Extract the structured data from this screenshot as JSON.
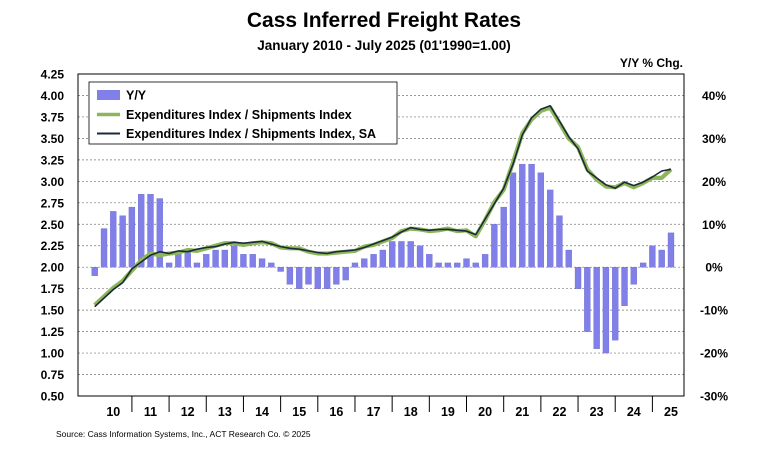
{
  "chart_data": {
    "type": "line",
    "title": "Cass Inferred Freight Rates",
    "subtitle": "January 2010 - July 2025 (01'1990=1.00)",
    "y2_label": "Y/Y % Chg.",
    "source": "Source: Cass Information Systems, Inc., ACT Research Co. © 2025",
    "ylim": [
      0.5,
      4.25
    ],
    "y_ticks": [
      "0.50",
      "0.75",
      "1.00",
      "1.25",
      "1.50",
      "1.75",
      "2.00",
      "2.25",
      "2.50",
      "2.75",
      "3.00",
      "3.25",
      "3.50",
      "3.75",
      "4.00",
      "4.25"
    ],
    "y2lim": [
      -30,
      45
    ],
    "y2_ticks": [
      "-30%",
      "-20%",
      "-10%",
      "0%",
      "10%",
      "20%",
      "30%",
      "40%"
    ],
    "x_ticks": [
      "10",
      "11",
      "12",
      "13",
      "14",
      "15",
      "16",
      "17",
      "18",
      "19",
      "20",
      "21",
      "22",
      "23",
      "24",
      "25"
    ],
    "grid": true,
    "legend_position": "top-left",
    "series": [
      {
        "name": "Y/Y",
        "kind": "bar",
        "axis": "right",
        "color": "#8080e8",
        "points": [
          [
            2010.0,
            -2
          ],
          [
            2010.25,
            9
          ],
          [
            2010.5,
            13
          ],
          [
            2010.75,
            12
          ],
          [
            2011.0,
            14
          ],
          [
            2011.25,
            17
          ],
          [
            2011.5,
            17
          ],
          [
            2011.75,
            16
          ],
          [
            2012.0,
            1
          ],
          [
            2012.25,
            3
          ],
          [
            2012.5,
            4
          ],
          [
            2012.75,
            1
          ],
          [
            2013.0,
            3
          ],
          [
            2013.25,
            4
          ],
          [
            2013.5,
            4
          ],
          [
            2013.75,
            5
          ],
          [
            2014.0,
            3
          ],
          [
            2014.25,
            3
          ],
          [
            2014.5,
            2
          ],
          [
            2014.75,
            1
          ],
          [
            2015.0,
            -1
          ],
          [
            2015.25,
            -4
          ],
          [
            2015.5,
            -5
          ],
          [
            2015.75,
            -4
          ],
          [
            2016.0,
            -5
          ],
          [
            2016.25,
            -5
          ],
          [
            2016.5,
            -4
          ],
          [
            2016.75,
            -3
          ],
          [
            2017.0,
            1
          ],
          [
            2017.25,
            2
          ],
          [
            2017.5,
            3
          ],
          [
            2017.75,
            4
          ],
          [
            2018.0,
            6
          ],
          [
            2018.25,
            6
          ],
          [
            2018.5,
            6
          ],
          [
            2018.75,
            5
          ],
          [
            2019.0,
            3
          ],
          [
            2019.25,
            1
          ],
          [
            2019.5,
            1
          ],
          [
            2019.75,
            1
          ],
          [
            2020.0,
            2
          ],
          [
            2020.25,
            1
          ],
          [
            2020.5,
            3
          ],
          [
            2020.75,
            10
          ],
          [
            2021.0,
            14
          ],
          [
            2021.25,
            22
          ],
          [
            2021.5,
            24
          ],
          [
            2021.75,
            24
          ],
          [
            2022.0,
            22
          ],
          [
            2022.25,
            18
          ],
          [
            2022.5,
            12
          ],
          [
            2022.75,
            4
          ],
          [
            2023.0,
            -5
          ],
          [
            2023.25,
            -15
          ],
          [
            2023.5,
            -19
          ],
          [
            2023.75,
            -20
          ],
          [
            2024.0,
            -17
          ],
          [
            2024.25,
            -9
          ],
          [
            2024.5,
            -4
          ],
          [
            2024.75,
            1
          ],
          [
            2025.0,
            5
          ],
          [
            2025.25,
            4
          ],
          [
            2025.5,
            8
          ]
        ]
      },
      {
        "name": "Expenditures Index / Shipments Index",
        "kind": "line",
        "axis": "left",
        "color": "#8db65a",
        "points": [
          [
            2010.0,
            1.56
          ],
          [
            2010.25,
            1.66
          ],
          [
            2010.5,
            1.76
          ],
          [
            2010.75,
            1.84
          ],
          [
            2011.0,
            1.96
          ],
          [
            2011.25,
            2.08
          ],
          [
            2011.5,
            2.16
          ],
          [
            2011.75,
            2.14
          ],
          [
            2012.0,
            2.16
          ],
          [
            2012.25,
            2.17
          ],
          [
            2012.5,
            2.2
          ],
          [
            2012.75,
            2.19
          ],
          [
            2013.0,
            2.22
          ],
          [
            2013.25,
            2.25
          ],
          [
            2013.5,
            2.28
          ],
          [
            2013.75,
            2.28
          ],
          [
            2014.0,
            2.26
          ],
          [
            2014.25,
            2.28
          ],
          [
            2014.5,
            2.29
          ],
          [
            2014.75,
            2.28
          ],
          [
            2015.0,
            2.23
          ],
          [
            2015.25,
            2.22
          ],
          [
            2015.5,
            2.22
          ],
          [
            2015.75,
            2.18
          ],
          [
            2016.0,
            2.16
          ],
          [
            2016.25,
            2.16
          ],
          [
            2016.5,
            2.17
          ],
          [
            2016.75,
            2.18
          ],
          [
            2017.0,
            2.19
          ],
          [
            2017.25,
            2.24
          ],
          [
            2017.5,
            2.26
          ],
          [
            2017.75,
            2.3
          ],
          [
            2018.0,
            2.34
          ],
          [
            2018.25,
            2.42
          ],
          [
            2018.5,
            2.45
          ],
          [
            2018.75,
            2.44
          ],
          [
            2019.0,
            2.42
          ],
          [
            2019.25,
            2.43
          ],
          [
            2019.5,
            2.45
          ],
          [
            2019.75,
            2.42
          ],
          [
            2020.0,
            2.43
          ],
          [
            2020.25,
            2.36
          ],
          [
            2020.5,
            2.55
          ],
          [
            2020.75,
            2.76
          ],
          [
            2021.0,
            2.9
          ],
          [
            2021.25,
            3.22
          ],
          [
            2021.5,
            3.56
          ],
          [
            2021.75,
            3.72
          ],
          [
            2022.0,
            3.82
          ],
          [
            2022.25,
            3.86
          ],
          [
            2022.5,
            3.68
          ],
          [
            2022.75,
            3.5
          ],
          [
            2023.0,
            3.4
          ],
          [
            2023.25,
            3.14
          ],
          [
            2023.5,
            3.02
          ],
          [
            2023.75,
            2.94
          ],
          [
            2024.0,
            2.93
          ],
          [
            2024.25,
            2.98
          ],
          [
            2024.5,
            2.93
          ],
          [
            2024.75,
            2.98
          ],
          [
            2025.0,
            3.04
          ],
          [
            2025.25,
            3.04
          ],
          [
            2025.5,
            3.14
          ]
        ]
      },
      {
        "name": "Expenditures Index / Shipments Index, SA",
        "kind": "line",
        "axis": "left",
        "color": "#1c2a3a",
        "points": [
          [
            2010.0,
            1.54
          ],
          [
            2010.25,
            1.64
          ],
          [
            2010.5,
            1.74
          ],
          [
            2010.75,
            1.82
          ],
          [
            2011.0,
            1.98
          ],
          [
            2011.25,
            2.06
          ],
          [
            2011.5,
            2.14
          ],
          [
            2011.75,
            2.18
          ],
          [
            2012.0,
            2.16
          ],
          [
            2012.25,
            2.19
          ],
          [
            2012.5,
            2.18
          ],
          [
            2012.75,
            2.21
          ],
          [
            2013.0,
            2.23
          ],
          [
            2013.25,
            2.24
          ],
          [
            2013.5,
            2.27
          ],
          [
            2013.75,
            2.29
          ],
          [
            2014.0,
            2.28
          ],
          [
            2014.25,
            2.29
          ],
          [
            2014.5,
            2.3
          ],
          [
            2014.75,
            2.27
          ],
          [
            2015.0,
            2.24
          ],
          [
            2015.25,
            2.22
          ],
          [
            2015.5,
            2.21
          ],
          [
            2015.75,
            2.19
          ],
          [
            2016.0,
            2.17
          ],
          [
            2016.25,
            2.16
          ],
          [
            2016.5,
            2.18
          ],
          [
            2016.75,
            2.19
          ],
          [
            2017.0,
            2.2
          ],
          [
            2017.25,
            2.23
          ],
          [
            2017.5,
            2.27
          ],
          [
            2017.75,
            2.31
          ],
          [
            2018.0,
            2.35
          ],
          [
            2018.25,
            2.41
          ],
          [
            2018.5,
            2.46
          ],
          [
            2018.75,
            2.44
          ],
          [
            2019.0,
            2.43
          ],
          [
            2019.25,
            2.44
          ],
          [
            2019.5,
            2.44
          ],
          [
            2019.75,
            2.43
          ],
          [
            2020.0,
            2.42
          ],
          [
            2020.25,
            2.38
          ],
          [
            2020.5,
            2.56
          ],
          [
            2020.75,
            2.74
          ],
          [
            2021.0,
            2.92
          ],
          [
            2021.25,
            3.2
          ],
          [
            2021.5,
            3.54
          ],
          [
            2021.75,
            3.74
          ],
          [
            2022.0,
            3.84
          ],
          [
            2022.25,
            3.88
          ],
          [
            2022.5,
            3.7
          ],
          [
            2022.75,
            3.52
          ],
          [
            2023.0,
            3.38
          ],
          [
            2023.25,
            3.12
          ],
          [
            2023.5,
            3.04
          ],
          [
            2023.75,
            2.96
          ],
          [
            2024.0,
            2.92
          ],
          [
            2024.25,
            2.99
          ],
          [
            2024.5,
            2.95
          ],
          [
            2024.75,
            2.99
          ],
          [
            2025.0,
            3.05
          ],
          [
            2025.25,
            3.12
          ],
          [
            2025.5,
            3.14
          ]
        ]
      }
    ]
  }
}
